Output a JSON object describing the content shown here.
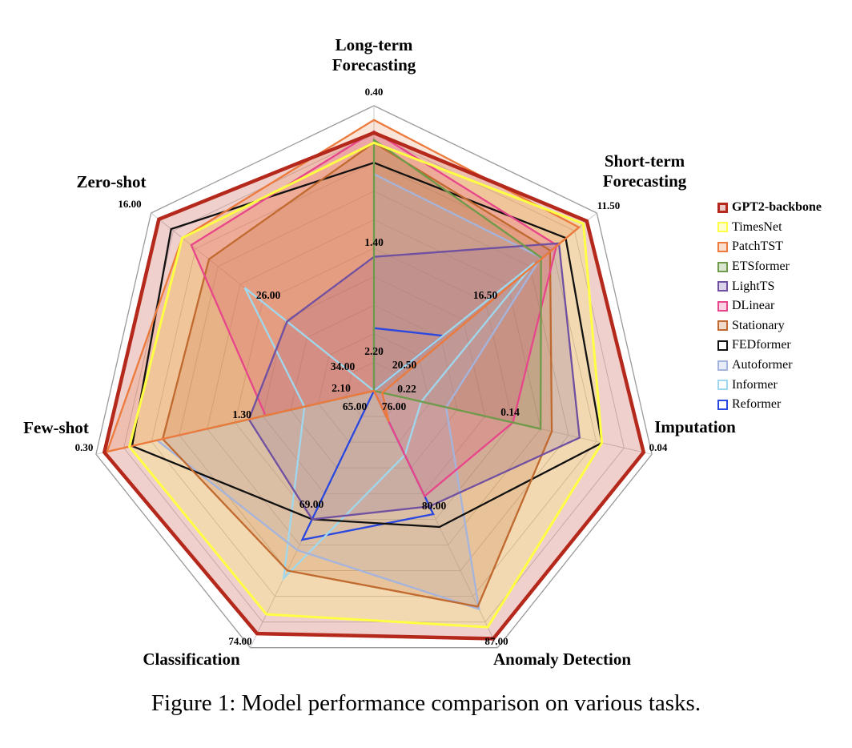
{
  "caption": "Figure 1: Model performance comparison on various tasks.",
  "chart_data": {
    "type": "radar",
    "axes": [
      {
        "title": [
          "Long-term",
          "Forecasting"
        ],
        "end_value": "0.40",
        "ticks": [
          "1.40"
        ]
      },
      {
        "title": [
          "Short-term",
          "Forecasting"
        ],
        "end_value": "11.50",
        "ticks": [
          "16.50",
          "20.50"
        ]
      },
      {
        "title": [
          "Imputation"
        ],
        "end_value": "0.04",
        "ticks": [
          "0.14",
          "0.22"
        ]
      },
      {
        "title": [
          "Anomaly Detection"
        ],
        "end_value": "87.00",
        "ticks": [
          "80.00",
          "76.00"
        ]
      },
      {
        "title": [
          "Classification"
        ],
        "end_value": "74.00",
        "ticks": [
          "69.00",
          "65.00"
        ]
      },
      {
        "title": [
          "Few-shot"
        ],
        "end_value": "0.30",
        "ticks": [
          "1.30",
          "2.10"
        ]
      },
      {
        "title": [
          "Zero-shot"
        ],
        "end_value": "16.00",
        "ticks": [
          "26.00",
          "34.00"
        ]
      }
    ],
    "center_label": "2.20",
    "grid_levels": 10,
    "series": [
      {
        "name": "GPT2-backbone",
        "color": "#b5281c",
        "fill": true,
        "values": [
          0.905,
          0.955,
          0.97,
          0.965,
          0.945,
          0.97,
          0.965
        ]
      },
      {
        "name": "TimesNet",
        "color": "#ffff44",
        "fill": true,
        "values": [
          0.87,
          0.94,
          0.82,
          0.92,
          0.87,
          0.88,
          0.86
        ]
      },
      {
        "name": "PatchTST",
        "color": "#ec7a3c",
        "fill": true,
        "values": [
          0.95,
          0.92,
          0.03,
          0.12,
          0.0,
          0.96,
          0.86
        ]
      },
      {
        "name": "ETSformer",
        "color": "#6e9a4a",
        "fill": true,
        "values": [
          0.88,
          0.75,
          0.6,
          0.0,
          0.0,
          0.6,
          0.0
        ]
      },
      {
        "name": "LightTS",
        "color": "#7050a0",
        "fill": true,
        "values": [
          0.47,
          0.83,
          0.74,
          0.45,
          0.5,
          0.45,
          0.39
        ]
      },
      {
        "name": "DLinear",
        "color": "#e8468a",
        "fill": true,
        "values": [
          0.91,
          0.82,
          0.5,
          0.41,
          0.0,
          0.39,
          0.82
        ]
      },
      {
        "name": "Stationary",
        "color": "#c16a30",
        "fill": true,
        "values": [
          0.87,
          0.79,
          0.64,
          0.84,
          0.7,
          0.76,
          0.74
        ]
      },
      {
        "name": "FEDformer",
        "color": "#111111",
        "fill": false,
        "values": [
          0.8,
          0.86,
          0.82,
          0.53,
          0.5,
          0.87,
          0.91
        ]
      },
      {
        "name": "Autoformer",
        "color": "#a4b4dc",
        "fill": true,
        "values": [
          0.76,
          0.75,
          0.26,
          0.85,
          0.62,
          0.78,
          0.0
        ]
      },
      {
        "name": "Informer",
        "color": "#9fd8ee",
        "fill": false,
        "values": [
          0.0,
          0.72,
          0.17,
          0.25,
          0.73,
          0.25,
          0.58
        ]
      },
      {
        "name": "Reformer",
        "color": "#2a48e0",
        "fill": false,
        "values": [
          0.22,
          0.31,
          0.0,
          0.48,
          0.58,
          0.0,
          0.0
        ]
      }
    ]
  }
}
